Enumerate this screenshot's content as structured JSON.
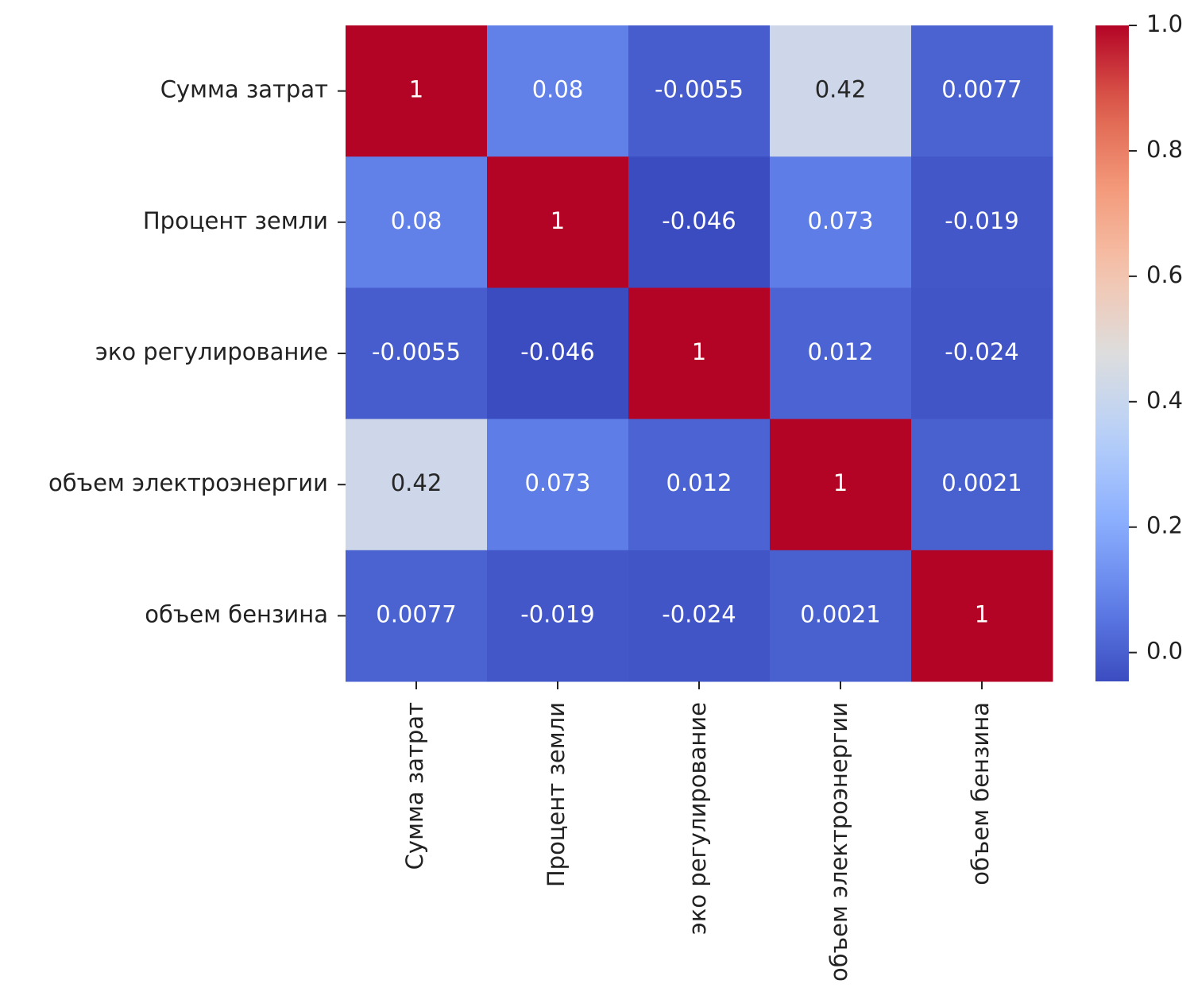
{
  "chart_data": {
    "type": "heatmap",
    "x_categories": [
      "Сумма затрат",
      "Процент земли",
      "эко регулирование",
      "объем электроэнергии",
      "объем бензина"
    ],
    "y_categories": [
      "Сумма затрат",
      "Процент земли",
      "эко регулирование",
      "объем электроэнергии",
      "объем бензина"
    ],
    "z": [
      [
        1,
        0.08,
        -0.0055,
        0.42,
        0.0077
      ],
      [
        0.08,
        1,
        -0.046,
        0.073,
        -0.019
      ],
      [
        -0.0055,
        -0.046,
        1,
        0.012,
        -0.024
      ],
      [
        0.42,
        0.073,
        0.012,
        1,
        0.0021
      ],
      [
        0.0077,
        -0.019,
        -0.024,
        0.0021,
        1
      ]
    ],
    "colormap": "coolwarm",
    "zlim": [
      -0.046,
      1
    ],
    "colorbar_ticks": [
      {
        "value": 0,
        "label": "0.0"
      },
      {
        "value": 0.2,
        "label": "0.2"
      },
      {
        "value": 0.4,
        "label": "0.4"
      },
      {
        "value": 0.6,
        "label": "0.6"
      },
      {
        "value": 0.8,
        "label": "0.8"
      },
      {
        "value": 1,
        "label": "1.0"
      }
    ]
  }
}
